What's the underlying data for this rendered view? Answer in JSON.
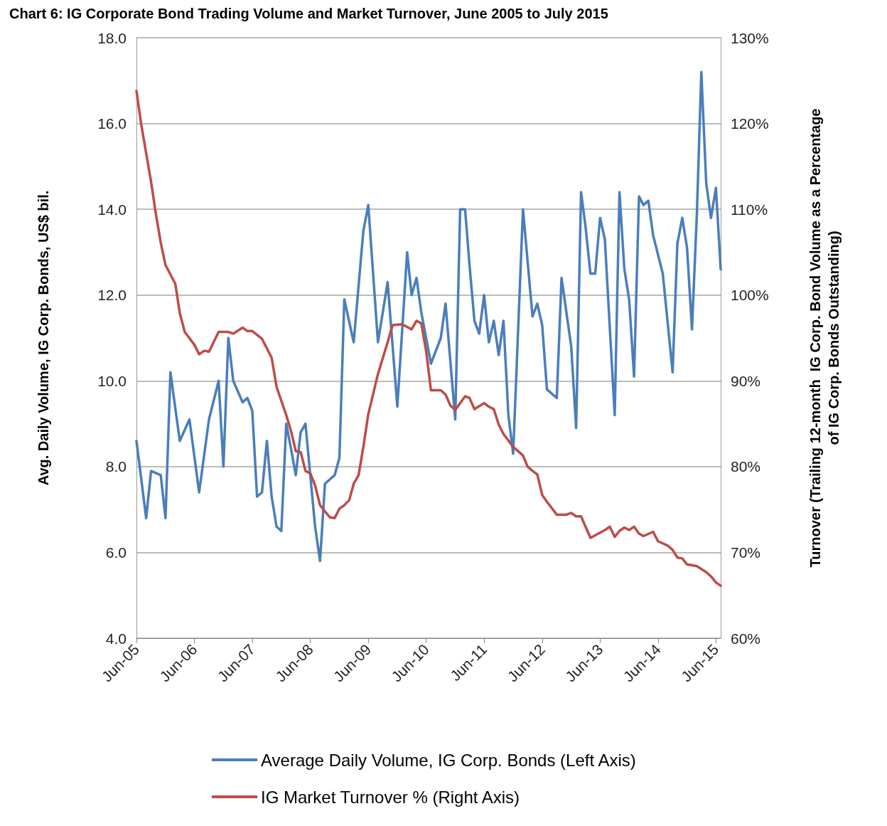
{
  "chart_data": {
    "type": "line",
    "title": "Chart 6: IG Corporate Bond Trading Volume and Market Turnover, June 2005 to July 2015",
    "ylabel": "Avg. Daily Volume, IG Corp. Bonds, US$ bil.",
    "y2label": "Turnover (Trailing 12-month  IG Corp. Bond Volume as a Percentage\nof IG Corp. Bonds Outstanding)",
    "xlim": [
      "2005-06",
      "2015-07"
    ],
    "xticks": [
      {
        "value": "2005-06",
        "label": "Jun-05"
      },
      {
        "value": "2006-06",
        "label": "Jun-06"
      },
      {
        "value": "2007-06",
        "label": "Jun-07"
      },
      {
        "value": "2008-06",
        "label": "Jun-08"
      },
      {
        "value": "2009-06",
        "label": "Jun-09"
      },
      {
        "value": "2010-06",
        "label": "Jun-10"
      },
      {
        "value": "2011-06",
        "label": "Jun-11"
      },
      {
        "value": "2012-06",
        "label": "Jun-12"
      },
      {
        "value": "2013-06",
        "label": "Jun-13"
      },
      {
        "value": "2014-06",
        "label": "Jun-14"
      },
      {
        "value": "2015-06",
        "label": "Jun-15"
      }
    ],
    "ylim": [
      4,
      18
    ],
    "yticks": [
      {
        "value": 4,
        "label": "4.0"
      },
      {
        "value": 6,
        "label": "6.0"
      },
      {
        "value": 8,
        "label": "8.0"
      },
      {
        "value": 10,
        "label": "10.0"
      },
      {
        "value": 12,
        "label": "12.0"
      },
      {
        "value": 14,
        "label": "14.0"
      },
      {
        "value": 16,
        "label": "16.0"
      },
      {
        "value": 18,
        "label": "18.0"
      }
    ],
    "y2lim": [
      60,
      130
    ],
    "y2ticks": [
      {
        "value": 60,
        "label": "60%"
      },
      {
        "value": 70,
        "label": "70%"
      },
      {
        "value": 80,
        "label": "80%"
      },
      {
        "value": 90,
        "label": "90%"
      },
      {
        "value": 100,
        "label": "100%"
      },
      {
        "value": 110,
        "label": "110%"
      },
      {
        "value": 120,
        "label": "120%"
      },
      {
        "value": 130,
        "label": "130%"
      }
    ],
    "grid": "y",
    "legend": "bottom",
    "marker": "none",
    "line_style": "solid",
    "series": [
      {
        "name": "Average Daily Volume, IG Corp. Bonds (Left Axis)",
        "color": "#4a7ebb",
        "x": [
          "2005-06",
          "2005-08",
          "2005-09",
          "2005-11",
          "2005-12",
          "2006-01",
          "2006-03",
          "2006-05",
          "2006-07",
          "2006-09",
          "2006-11",
          "2006-12",
          "2007-01",
          "2007-02",
          "2007-04",
          "2007-05",
          "2007-06",
          "2007-07",
          "2007-08",
          "2007-09",
          "2007-10",
          "2007-11",
          "2007-12",
          "2008-01",
          "2008-02",
          "2008-03",
          "2008-04",
          "2008-05",
          "2008-07",
          "2008-08",
          "2008-09",
          "2008-10",
          "2008-11",
          "2008-12",
          "2009-01",
          "2009-03",
          "2009-05",
          "2009-06",
          "2009-08",
          "2009-10",
          "2009-12",
          "2010-02",
          "2010-03",
          "2010-04",
          "2010-05",
          "2010-07",
          "2010-09",
          "2010-10",
          "2010-12",
          "2011-01",
          "2011-02",
          "2011-03",
          "2011-04",
          "2011-05",
          "2011-06",
          "2011-07",
          "2011-08",
          "2011-09",
          "2011-10",
          "2011-11",
          "2011-12",
          "2012-02",
          "2012-04",
          "2012-05",
          "2012-06",
          "2012-07",
          "2012-09",
          "2012-10",
          "2012-12",
          "2013-01",
          "2013-02",
          "2013-03",
          "2013-04",
          "2013-05",
          "2013-06",
          "2013-07",
          "2013-09",
          "2013-10",
          "2013-11",
          "2013-12",
          "2014-01",
          "2014-02",
          "2014-03",
          "2014-04",
          "2014-05",
          "2014-07",
          "2014-09",
          "2014-10",
          "2014-11",
          "2014-12",
          "2015-01",
          "2015-02",
          "2015-03",
          "2015-04",
          "2015-05",
          "2015-06",
          "2015-07"
        ],
        "values": [
          8.6,
          6.8,
          7.9,
          7.8,
          6.8,
          10.2,
          8.6,
          9.1,
          7.4,
          9.1,
          10.0,
          8.0,
          11.0,
          10.0,
          9.5,
          9.6,
          9.3,
          7.3,
          7.4,
          8.6,
          7.3,
          6.6,
          6.5,
          9.0,
          8.4,
          7.8,
          8.8,
          9.0,
          6.6,
          5.8,
          7.6,
          7.7,
          7.8,
          8.2,
          11.9,
          10.9,
          13.5,
          14.1,
          10.9,
          12.3,
          9.4,
          13.0,
          12.0,
          12.4,
          11.6,
          10.4,
          11.0,
          11.8,
          9.1,
          14.0,
          14.0,
          12.7,
          11.4,
          11.1,
          12.0,
          10.9,
          11.4,
          10.6,
          11.4,
          9.2,
          8.3,
          14.0,
          11.5,
          11.8,
          11.3,
          9.8,
          9.6,
          12.4,
          10.8,
          8.9,
          14.4,
          13.6,
          12.5,
          12.5,
          13.8,
          13.3,
          9.2,
          14.4,
          12.6,
          11.9,
          10.1,
          14.3,
          14.1,
          14.2,
          13.4,
          12.5,
          10.2,
          13.2,
          13.8,
          13.1,
          11.2,
          13.9,
          17.2,
          14.6,
          13.8,
          14.5,
          12.6
        ]
      },
      {
        "name": "IG Market Turnover % (Right Axis)",
        "color": "#be4b48",
        "axis": "y2",
        "x": [
          "2005-06",
          "2005-07",
          "2005-09",
          "2005-10",
          "2005-11",
          "2005-12",
          "2006-02",
          "2006-03",
          "2006-04",
          "2006-06",
          "2006-07",
          "2006-08",
          "2006-09",
          "2006-11",
          "2007-01",
          "2007-02",
          "2007-04",
          "2007-05",
          "2007-06",
          "2007-08",
          "2007-10",
          "2007-11",
          "2008-01",
          "2008-02",
          "2008-03",
          "2008-04",
          "2008-05",
          "2008-06",
          "2008-07",
          "2008-08",
          "2008-10",
          "2008-11",
          "2008-12",
          "2009-01",
          "2009-02",
          "2009-03",
          "2009-04",
          "2009-05",
          "2009-06",
          "2009-08",
          "2009-10",
          "2009-11",
          "2010-01",
          "2010-03",
          "2010-04",
          "2010-05",
          "2010-06",
          "2010-07",
          "2010-09",
          "2010-10",
          "2010-11",
          "2010-12",
          "2011-02",
          "2011-03",
          "2011-04",
          "2011-06",
          "2011-07",
          "2011-08",
          "2011-09",
          "2011-10",
          "2011-12",
          "2012-02",
          "2012-03",
          "2012-04",
          "2012-05",
          "2012-06",
          "2012-07",
          "2012-09",
          "2012-11",
          "2012-12",
          "2013-01",
          "2013-02",
          "2013-04",
          "2013-06",
          "2013-07",
          "2013-08",
          "2013-09",
          "2013-10",
          "2013-11",
          "2013-12",
          "2014-01",
          "2014-02",
          "2014-03",
          "2014-05",
          "2014-06",
          "2014-08",
          "2014-09",
          "2014-10",
          "2014-11",
          "2014-12",
          "2015-02",
          "2015-04",
          "2015-05",
          "2015-06",
          "2015-07"
        ],
        "values": [
          123.8,
          119.9,
          113.2,
          109.5,
          106.1,
          103.5,
          101.3,
          97.9,
          95.7,
          94.2,
          93.1,
          93.5,
          93.4,
          95.7,
          95.7,
          95.5,
          96.2,
          95.8,
          95.8,
          94.9,
          92.7,
          89.3,
          86.0,
          84.1,
          81.8,
          81.7,
          79.5,
          79.2,
          77.8,
          75.5,
          74.1,
          74.0,
          75.1,
          75.5,
          76.1,
          78.0,
          79.0,
          82.3,
          86.1,
          90.8,
          94.5,
          96.5,
          96.6,
          96.0,
          97.0,
          96.7,
          93.4,
          88.9,
          88.9,
          88.4,
          87.1,
          86.6,
          88.2,
          88.0,
          86.7,
          87.4,
          87.0,
          86.7,
          84.9,
          83.8,
          82.3,
          81.3,
          80.0,
          79.5,
          79.1,
          76.7,
          75.9,
          74.4,
          74.4,
          74.6,
          74.2,
          74.2,
          71.7,
          72.3,
          72.6,
          73.0,
          71.8,
          72.5,
          72.9,
          72.6,
          73.0,
          72.2,
          71.9,
          72.4,
          71.3,
          70.8,
          70.3,
          69.4,
          69.3,
          68.6,
          68.4,
          67.7,
          67.2,
          66.5,
          66.1
        ]
      }
    ]
  }
}
